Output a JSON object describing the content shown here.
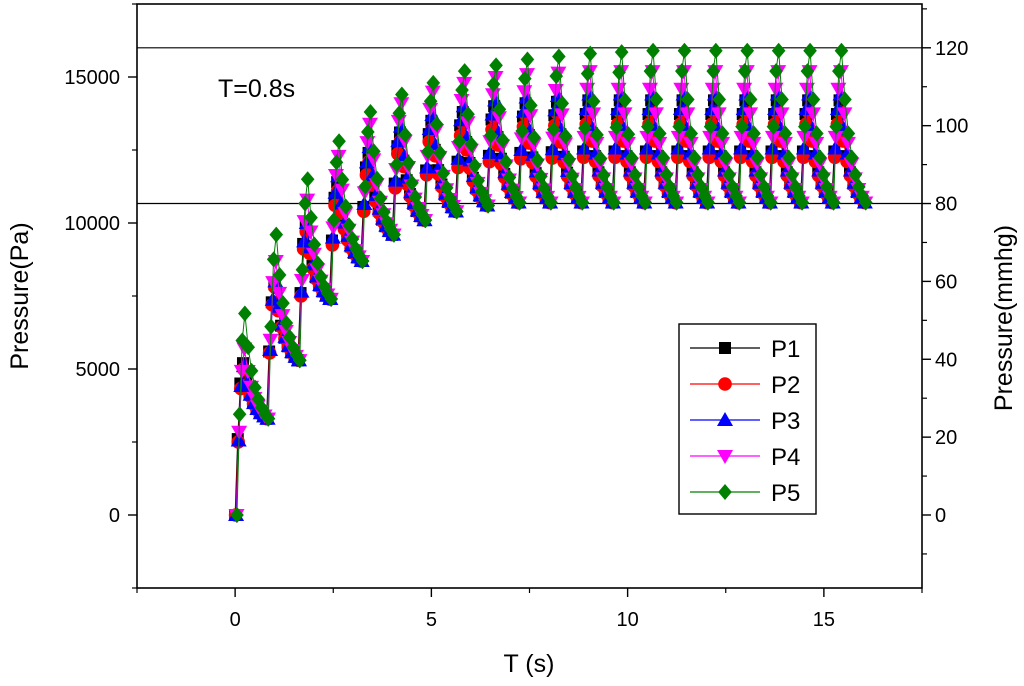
{
  "chart_data": {
    "type": "scatter",
    "title": "",
    "xlabel": "T (s)",
    "ylabel": "Pressure(Pa)",
    "y2label": "Pressure(mmhg)",
    "xlim": [
      -2.5,
      17.5
    ],
    "ylim": [
      -2500,
      17500
    ],
    "y2lim": [
      -18.75,
      131.25
    ],
    "x_ticks": [
      0,
      5,
      10,
      15
    ],
    "y_ticks": [
      0,
      5000,
      10000,
      15000
    ],
    "y2_ticks": [
      0,
      20,
      40,
      60,
      80,
      100,
      120
    ],
    "reference_lines_y": [
      16000,
      10666.7
    ],
    "annotation": "T=0.8s",
    "period_s": 0.8,
    "legend_position": "lower-right",
    "series": [
      {
        "name": "P1",
        "marker": "square",
        "color": "#000000",
        "peaks": [
          5200,
          7900,
          9900,
          11400,
          12400,
          13100,
          13500,
          13800,
          14000,
          14100,
          14150,
          14200,
          14200,
          14200,
          14200,
          14200,
          14200,
          14200,
          14200,
          14200
        ],
        "troughs": [
          0,
          3300,
          5300,
          7400,
          8700,
          9600,
          10100,
          10400,
          10600,
          10700,
          10700,
          10700,
          10700,
          10700,
          10700,
          10700,
          10700,
          10700,
          10700,
          10700
        ]
      },
      {
        "name": "P2",
        "marker": "circle",
        "color": "#ff0000",
        "peaks": [
          5000,
          7800,
          9700,
          11100,
          12100,
          12800,
          13200,
          13400,
          13600,
          13700,
          13750,
          13800,
          13800,
          13800,
          13800,
          13800,
          13800,
          13800,
          13800,
          13800
        ],
        "troughs": [
          0,
          3300,
          5300,
          7400,
          8700,
          9600,
          10100,
          10400,
          10600,
          10700,
          10700,
          10700,
          10700,
          10700,
          10700,
          10700,
          10700,
          10700,
          10700,
          10700
        ]
      },
      {
        "name": "P3",
        "marker": "triangle-up",
        "color": "#0000ff",
        "peaks": [
          5100,
          8000,
          10000,
          11600,
          12600,
          13300,
          13700,
          14000,
          14200,
          14300,
          14350,
          14400,
          14400,
          14400,
          14400,
          14400,
          14400,
          14400,
          14400,
          14400
        ],
        "troughs": [
          0,
          3300,
          5300,
          7400,
          8700,
          9600,
          10100,
          10400,
          10600,
          10700,
          10700,
          10700,
          10700,
          10700,
          10700,
          10700,
          10700,
          10700,
          10700,
          10700
        ]
      },
      {
        "name": "P4",
        "marker": "triangle-down",
        "color": "#ff00ff",
        "peaks": [
          5700,
          8700,
          10800,
          12300,
          13400,
          14100,
          14500,
          14800,
          15000,
          15100,
          15150,
          15200,
          15200,
          15200,
          15200,
          15200,
          15200,
          15200,
          15200,
          15200
        ],
        "troughs": [
          0,
          3300,
          5300,
          7400,
          8700,
          9600,
          10100,
          10400,
          10600,
          10700,
          10700,
          10700,
          10700,
          10700,
          10700,
          10700,
          10700,
          10700,
          10700,
          10700
        ]
      },
      {
        "name": "P5",
        "marker": "diamond",
        "color": "#008000",
        "peaks": [
          6900,
          9600,
          11500,
          12800,
          13800,
          14400,
          14800,
          15200,
          15400,
          15600,
          15700,
          15800,
          15850,
          15900,
          15900,
          15900,
          15900,
          15900,
          15900,
          15900
        ],
        "troughs": [
          0,
          3300,
          5300,
          7400,
          8700,
          9600,
          10100,
          10400,
          10600,
          10700,
          10700,
          10700,
          10700,
          10700,
          10700,
          10700,
          10700,
          10700,
          10700,
          10700
        ]
      }
    ]
  }
}
